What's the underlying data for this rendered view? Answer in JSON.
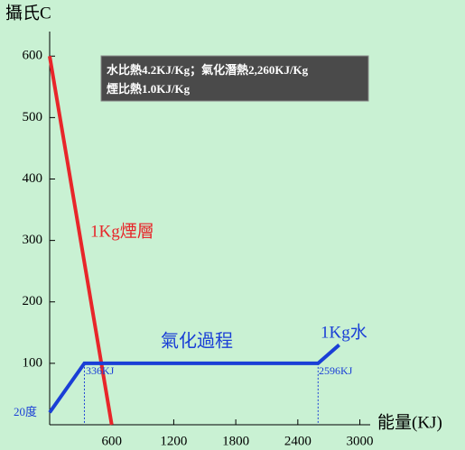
{
  "chart_data": {
    "type": "line",
    "y_label": "攝氏C",
    "x_label": "能量(KJ)",
    "xlim": [
      0,
      3100
    ],
    "ylim": [
      0,
      640
    ],
    "xticks": [
      600,
      1200,
      1800,
      2400,
      3000
    ],
    "yticks": [
      100,
      200,
      300,
      400,
      500,
      600
    ],
    "series": [
      {
        "name": "1Kg煙層",
        "color": "#e8262a",
        "x": [
          0,
          600
        ],
        "values": [
          600,
          0
        ]
      },
      {
        "name": "1Kg水",
        "color": "#1a3fd6",
        "x": [
          0,
          336,
          2596,
          2800
        ],
        "values": [
          20,
          100,
          100,
          130
        ]
      }
    ],
    "annotations": [
      "氣化過程",
      "336KJ",
      "2596KJ",
      "20度"
    ],
    "note_box": [
      "水比熱4.2KJ/Kg；氣化潛熱2,260KJ/Kg",
      "煙比熱1.0KJ/Kg"
    ]
  }
}
